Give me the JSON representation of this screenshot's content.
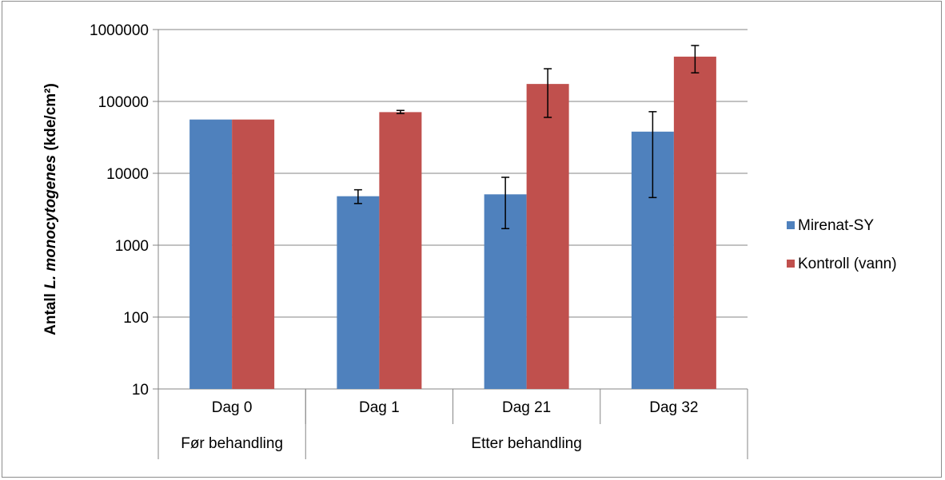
{
  "chart_data": {
    "type": "bar",
    "y_scale": "log",
    "ylim": [
      10,
      1000000
    ],
    "y_ticks": [
      "10",
      "100",
      "1000",
      "10000",
      "100000",
      "1000000"
    ],
    "ylabel_parts": [
      "Antall ",
      "L. monocytogenes",
      " (kde/cm²)"
    ],
    "categories": [
      "Dag 0",
      "Dag 1",
      "Dag 21",
      "Dag 32"
    ],
    "groups": [
      {
        "label": "Før behandling",
        "categories": [
          "Dag 0"
        ]
      },
      {
        "label": "Etter behandling",
        "categories": [
          "Dag 1",
          "Dag 21",
          "Dag 32"
        ]
      }
    ],
    "series": [
      {
        "name": "Mirenat-SY",
        "color": "#4F81BD",
        "values": [
          56000,
          4800,
          5100,
          38000
        ],
        "error_low": [
          null,
          3800,
          1700,
          4600
        ],
        "error_high": [
          null,
          5900,
          8800,
          72000
        ]
      },
      {
        "name": "Kontroll (vann)",
        "color": "#C0504D",
        "values": [
          56000,
          71000,
          175000,
          420000
        ],
        "error_low": [
          null,
          68000,
          60000,
          250000
        ],
        "error_high": [
          null,
          75000,
          285000,
          600000
        ]
      }
    ],
    "grid": true,
    "legend_position": "right"
  }
}
